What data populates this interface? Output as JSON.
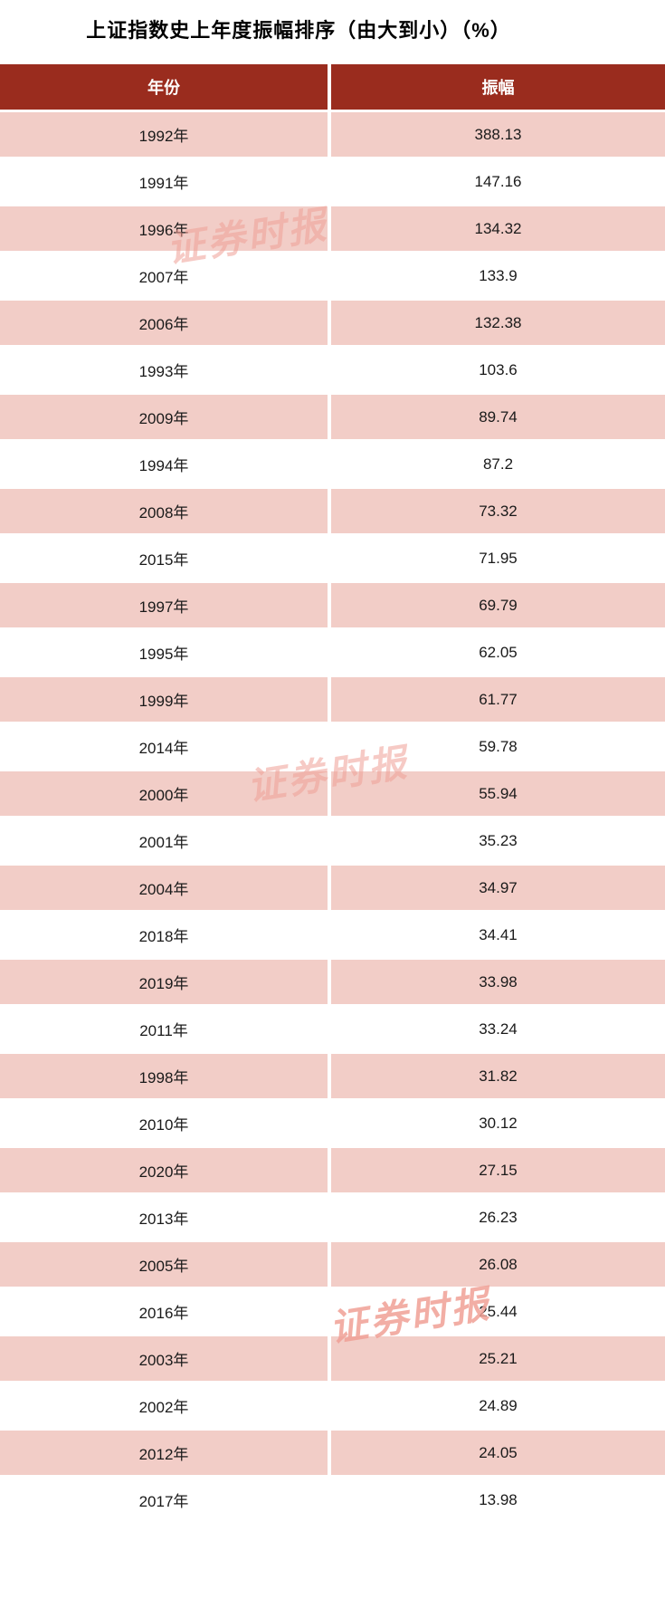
{
  "page": {
    "title": "上证指数史上年度振幅排序（由大到小）（%）"
  },
  "table": {
    "columns": {
      "year": "年份",
      "amplitude": "振幅"
    }
  },
  "watermark": {
    "text": "证券时报"
  },
  "colors": {
    "header_bg": "#9a2c1e",
    "header_text": "#ffffff",
    "row_alt_bg": "#f2cdc7",
    "watermark": "#f0a096"
  },
  "chart_data": {
    "type": "table",
    "title": "上证指数史上年度振幅排序（由大到小）（%）",
    "columns": [
      "年份",
      "振幅"
    ],
    "legend_position": "none",
    "grid": false,
    "rows": [
      {
        "year": "1992年",
        "value": 388.13
      },
      {
        "year": "1991年",
        "value": 147.16
      },
      {
        "year": "1996年",
        "value": 134.32
      },
      {
        "year": "2007年",
        "value": 133.9
      },
      {
        "year": "2006年",
        "value": 132.38
      },
      {
        "year": "1993年",
        "value": 103.6
      },
      {
        "year": "2009年",
        "value": 89.74
      },
      {
        "year": "1994年",
        "value": 87.2
      },
      {
        "year": "2008年",
        "value": 73.32
      },
      {
        "year": "2015年",
        "value": 71.95
      },
      {
        "year": "1997年",
        "value": 69.79
      },
      {
        "year": "1995年",
        "value": 62.05
      },
      {
        "year": "1999年",
        "value": 61.77
      },
      {
        "year": "2014年",
        "value": 59.78
      },
      {
        "year": "2000年",
        "value": 55.94
      },
      {
        "year": "2001年",
        "value": 35.23
      },
      {
        "year": "2004年",
        "value": 34.97
      },
      {
        "year": "2018年",
        "value": 34.41
      },
      {
        "year": "2019年",
        "value": 33.98
      },
      {
        "year": "2011年",
        "value": 33.24
      },
      {
        "year": "1998年",
        "value": 31.82
      },
      {
        "year": "2010年",
        "value": 30.12
      },
      {
        "year": "2020年",
        "value": 27.15
      },
      {
        "year": "2013年",
        "value": 26.23
      },
      {
        "year": "2005年",
        "value": 26.08
      },
      {
        "year": "2016年",
        "value": 25.44
      },
      {
        "year": "2003年",
        "value": 25.21
      },
      {
        "year": "2002年",
        "value": 24.89
      },
      {
        "year": "2012年",
        "value": 24.05
      },
      {
        "year": "2017年",
        "value": 13.98
      }
    ]
  }
}
